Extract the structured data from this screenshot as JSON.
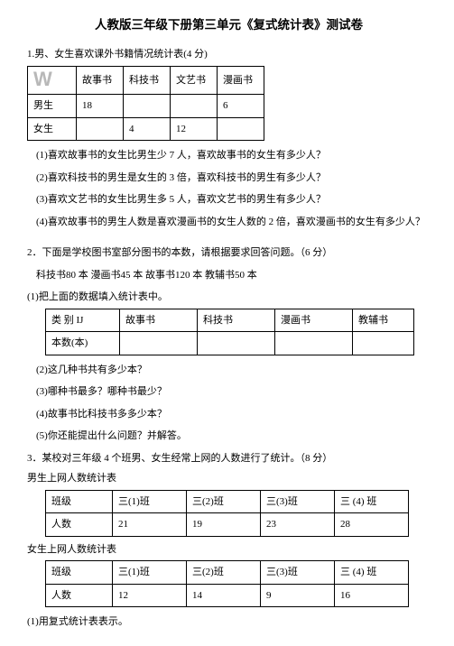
{
  "title": "人教版三年级下册第三单元《复式统计表》测试卷",
  "q1": {
    "heading": "1.男、女生喜欢课外书籍情况统计表(4 分)",
    "table": {
      "corner_glyph": "W",
      "headers": [
        "故事书",
        "科技书",
        "文艺书",
        "漫画书"
      ],
      "rows": [
        {
          "label": "男生",
          "cells": [
            "18",
            "",
            "",
            "6"
          ]
        },
        {
          "label": "女生",
          "cells": [
            "",
            "4",
            "12",
            ""
          ]
        }
      ]
    },
    "subs": [
      "(1)喜欢故事书的女生比男生少 7 人，喜欢故事书的女生有多少人？",
      "(2)喜欢科技书的男生是女生的 3 倍，喜欢科技书的男生有多少人？",
      "(3)喜欢文艺书的女生比男生多 5 人，喜欢文艺书的男生有多少人？",
      "(4)喜欢故事书的男生人数是喜欢漫画书的女生人数的 2 倍，喜欢漫画书的女生有多少人？"
    ]
  },
  "q2": {
    "heading": "2．下面是学校图书室部分图书的本数，请根据要求回答问题。（6 分）",
    "given": "科技书80 本 漫画书45 本 故事书120 本 教辅书50 本",
    "sub1": "(1)把上面的数据填入统计表中。",
    "table": {
      "row1": [
        "类 别 IJ",
        "故事书",
        "科技书",
        "漫画书",
        "教辅书"
      ],
      "row2": [
        "本数(本)",
        "",
        "",
        "",
        ""
      ]
    },
    "subs": [
      "(2)这几种书共有多少本？",
      "(3)哪种书最多？哪种书最少？",
      "(4)故事书比科技书多多少本？",
      "(5)你还能提出什么问题？并解答。"
    ]
  },
  "q3": {
    "heading": "3．某校对三年级 4 个班男、女生经常上网的人数进行了统计。（8 分）",
    "boys_title": "男生上网人数统计表",
    "girls_title": "女生上网人数统计表",
    "class_label": "班级",
    "count_label": "人数",
    "classes": [
      "三(1)班",
      "三(2)班",
      "三(3)班",
      "三 (4) 班"
    ],
    "boys": [
      "21",
      "19",
      "23",
      "28"
    ],
    "girls": [
      "12",
      "14",
      "9",
      "16"
    ],
    "sub": "(1)用复式统计表表示。"
  }
}
